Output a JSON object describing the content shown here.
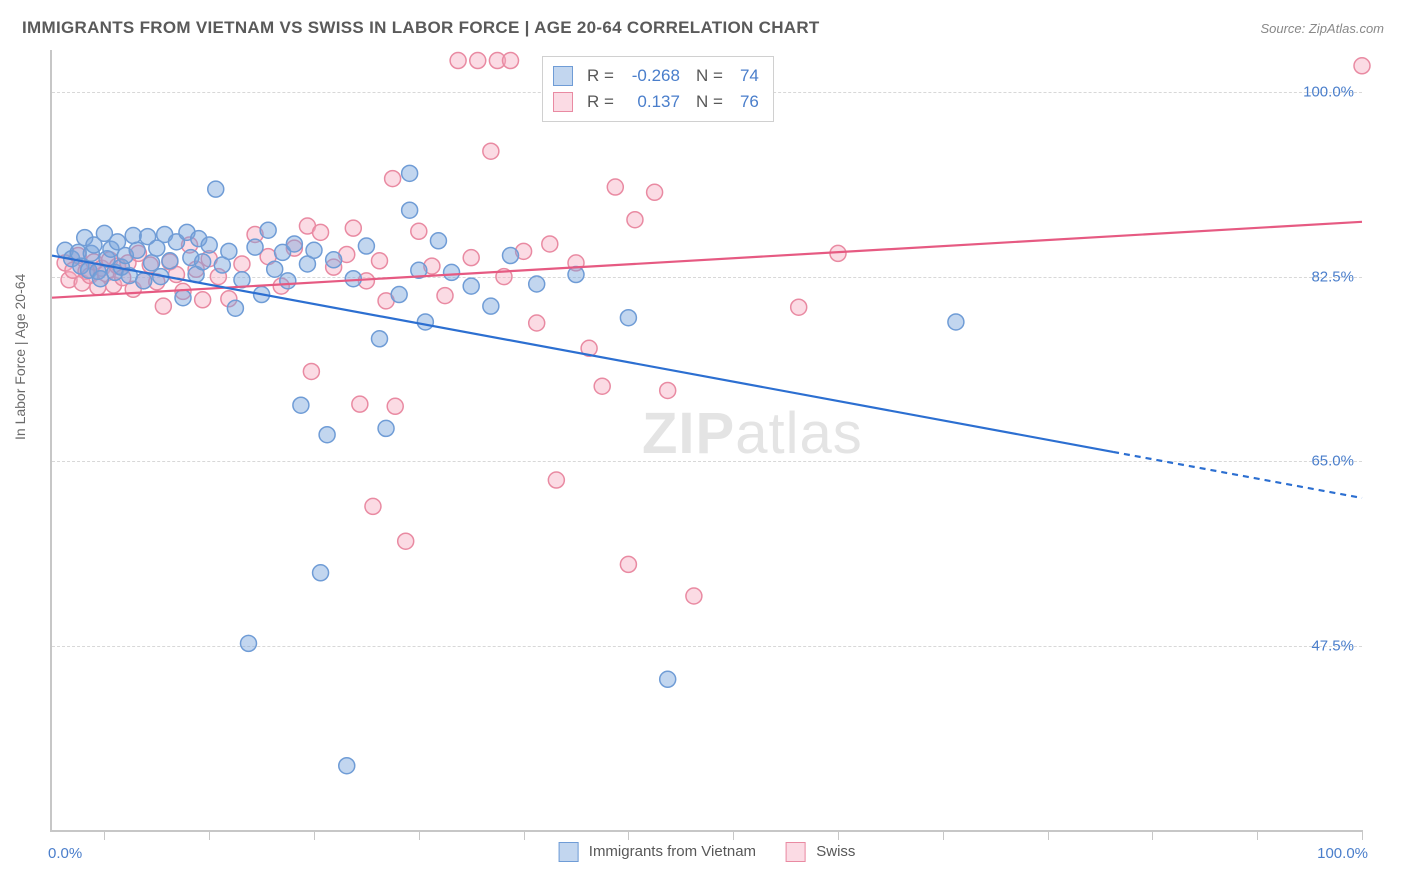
{
  "header": {
    "title": "IMMIGRANTS FROM VIETNAM VS SWISS IN LABOR FORCE | AGE 20-64 CORRELATION CHART",
    "source": "Source: ZipAtlas.com"
  },
  "axes": {
    "ylabel": "In Labor Force | Age 20-64",
    "x_min_label": "0.0%",
    "x_max_label": "100.0%",
    "x_domain": [
      0,
      100
    ],
    "y_domain": [
      30,
      104
    ],
    "y_ticks": [
      {
        "value": 47.5,
        "label": "47.5%"
      },
      {
        "value": 65.0,
        "label": "65.0%"
      },
      {
        "value": 82.5,
        "label": "82.5%"
      },
      {
        "value": 100.0,
        "label": "100.0%"
      }
    ],
    "x_tick_positions": [
      4,
      12,
      20,
      28,
      36,
      44,
      52,
      60,
      68,
      76,
      84,
      92,
      100
    ],
    "grid_color": "#d8d8d8",
    "axis_color": "#c7c7c7"
  },
  "series": {
    "s1": {
      "label": "Immigrants from Vietnam",
      "fill": "rgba(120,165,220,0.45)",
      "stroke": "#6f9cd6",
      "line_color": "#2c6fd1",
      "r_value": "-0.268",
      "n_value": "74",
      "reg_start": {
        "x": 0,
        "y": 84.5
      },
      "reg_end": {
        "x": 100,
        "y": 61.5
      },
      "reg_solid_until_x": 81,
      "points": [
        [
          1,
          85
        ],
        [
          1.5,
          84.2
        ],
        [
          2,
          84.8
        ],
        [
          2.2,
          83.5
        ],
        [
          2.5,
          86.2
        ],
        [
          2.8,
          83.1
        ],
        [
          3,
          84.7
        ],
        [
          3.2,
          85.5
        ],
        [
          3.5,
          83
        ],
        [
          3.7,
          82.3
        ],
        [
          4,
          86.6
        ],
        [
          4.2,
          84.2
        ],
        [
          4.5,
          85.1
        ],
        [
          4.8,
          82.9
        ],
        [
          5,
          85.8
        ],
        [
          5.3,
          83.4
        ],
        [
          5.6,
          84.5
        ],
        [
          5.9,
          82.6
        ],
        [
          6.2,
          86.4
        ],
        [
          6.5,
          85
        ],
        [
          7,
          82.1
        ],
        [
          7.3,
          86.3
        ],
        [
          7.6,
          83.8
        ],
        [
          8,
          85.2
        ],
        [
          8.3,
          82.5
        ],
        [
          8.6,
          86.5
        ],
        [
          9,
          84
        ],
        [
          9.5,
          85.8
        ],
        [
          10,
          80.5
        ],
        [
          10.3,
          86.7
        ],
        [
          10.6,
          84.3
        ],
        [
          11,
          82.7
        ],
        [
          11.2,
          86.1
        ],
        [
          11.5,
          83.9
        ],
        [
          12,
          85.5
        ],
        [
          12.5,
          90.8
        ],
        [
          13,
          83.6
        ],
        [
          13.5,
          84.9
        ],
        [
          14,
          79.5
        ],
        [
          14.5,
          82.2
        ],
        [
          15,
          47.7
        ],
        [
          15.5,
          85.3
        ],
        [
          16,
          80.8
        ],
        [
          16.5,
          86.9
        ],
        [
          17,
          83.2
        ],
        [
          17.6,
          84.8
        ],
        [
          18,
          82.1
        ],
        [
          18.5,
          85.6
        ],
        [
          19,
          70.3
        ],
        [
          19.5,
          83.7
        ],
        [
          20,
          85
        ],
        [
          20.5,
          54.4
        ],
        [
          21,
          67.5
        ],
        [
          21.5,
          84.1
        ],
        [
          22.5,
          36.1
        ],
        [
          23,
          82.3
        ],
        [
          24,
          85.4
        ],
        [
          25,
          76.6
        ],
        [
          25.5,
          68.1
        ],
        [
          26.5,
          80.8
        ],
        [
          27.3,
          92.3
        ],
        [
          27.3,
          88.8
        ],
        [
          28,
          83.1
        ],
        [
          28.5,
          78.2
        ],
        [
          29.5,
          85.9
        ],
        [
          30.5,
          82.9
        ],
        [
          32,
          81.6
        ],
        [
          33.5,
          79.7
        ],
        [
          35,
          84.5
        ],
        [
          37,
          81.8
        ],
        [
          40,
          82.7
        ],
        [
          44,
          78.6
        ],
        [
          47,
          44.3
        ],
        [
          69,
          78.2
        ]
      ]
    },
    "s2": {
      "label": "Swiss",
      "fill": "rgba(245,170,190,0.42)",
      "stroke": "#e98aa2",
      "line_color": "#e65a82",
      "r_value": "0.137",
      "n_value": "76",
      "reg_start": {
        "x": 0,
        "y": 80.5
      },
      "reg_end": {
        "x": 100,
        "y": 87.7
      },
      "reg_solid_until_x": 100,
      "points": [
        [
          1,
          83.8
        ],
        [
          1.3,
          82.2
        ],
        [
          1.6,
          83.1
        ],
        [
          2,
          84.5
        ],
        [
          2.3,
          81.9
        ],
        [
          2.6,
          83
        ],
        [
          2.9,
          82.6
        ],
        [
          3.2,
          83.9
        ],
        [
          3.5,
          81.5
        ],
        [
          3.8,
          83.3
        ],
        [
          4.1,
          82.8
        ],
        [
          4.4,
          84.1
        ],
        [
          4.7,
          81.7
        ],
        [
          5,
          83.5
        ],
        [
          5.4,
          82.4
        ],
        [
          5.8,
          83.8
        ],
        [
          6.2,
          81.3
        ],
        [
          6.6,
          84.7
        ],
        [
          7,
          82.1
        ],
        [
          7.5,
          83.6
        ],
        [
          8,
          82
        ],
        [
          8.5,
          79.7
        ],
        [
          9,
          83.9
        ],
        [
          9.5,
          82.7
        ],
        [
          10,
          81.1
        ],
        [
          10.5,
          85.5
        ],
        [
          11,
          83.2
        ],
        [
          11.5,
          80.3
        ],
        [
          12,
          84.2
        ],
        [
          12.7,
          82.5
        ],
        [
          13.5,
          80.4
        ],
        [
          14.5,
          83.7
        ],
        [
          15.5,
          86.5
        ],
        [
          16.5,
          84.4
        ],
        [
          17.5,
          81.6
        ],
        [
          18.5,
          85.2
        ],
        [
          19.5,
          87.3
        ],
        [
          19.8,
          73.5
        ],
        [
          20.5,
          86.7
        ],
        [
          21.5,
          83.4
        ],
        [
          22.5,
          84.6
        ],
        [
          23,
          87.1
        ],
        [
          23.5,
          70.4
        ],
        [
          24,
          82.1
        ],
        [
          24.5,
          60.7
        ],
        [
          25,
          84
        ],
        [
          25.5,
          80.2
        ],
        [
          26,
          91.8
        ],
        [
          26.2,
          70.2
        ],
        [
          27,
          57.4
        ],
        [
          28,
          86.8
        ],
        [
          29,
          83.5
        ],
        [
          30,
          80.7
        ],
        [
          31,
          103
        ],
        [
          32,
          84.3
        ],
        [
          32.5,
          103
        ],
        [
          33.5,
          94.4
        ],
        [
          34,
          103
        ],
        [
          34.5,
          82.5
        ],
        [
          35,
          103
        ],
        [
          36,
          84.9
        ],
        [
          37,
          78.1
        ],
        [
          38,
          85.6
        ],
        [
          38.5,
          63.2
        ],
        [
          40,
          83.8
        ],
        [
          41,
          75.7
        ],
        [
          42,
          72.1
        ],
        [
          43,
          91
        ],
        [
          44,
          55.2
        ],
        [
          44.5,
          87.9
        ],
        [
          46,
          90.5
        ],
        [
          47,
          71.7
        ],
        [
          49,
          52.2
        ],
        [
          57,
          79.6
        ],
        [
          60,
          84.7
        ],
        [
          100,
          102.5
        ]
      ]
    }
  },
  "legend": {
    "s1_swatch_fill": "rgba(120,165,220,0.45)",
    "s1_swatch_border": "#6f9cd6",
    "s2_swatch_fill": "rgba(245,170,190,0.42)",
    "s2_swatch_border": "#e98aa2"
  },
  "stats_box": {
    "r_label": "R =",
    "n_label": "N ="
  },
  "watermark": {
    "part1": "ZIP",
    "part2": "atlas"
  },
  "marker": {
    "radius": 8,
    "stroke_width": 1.5
  },
  "line_width": 2.2
}
